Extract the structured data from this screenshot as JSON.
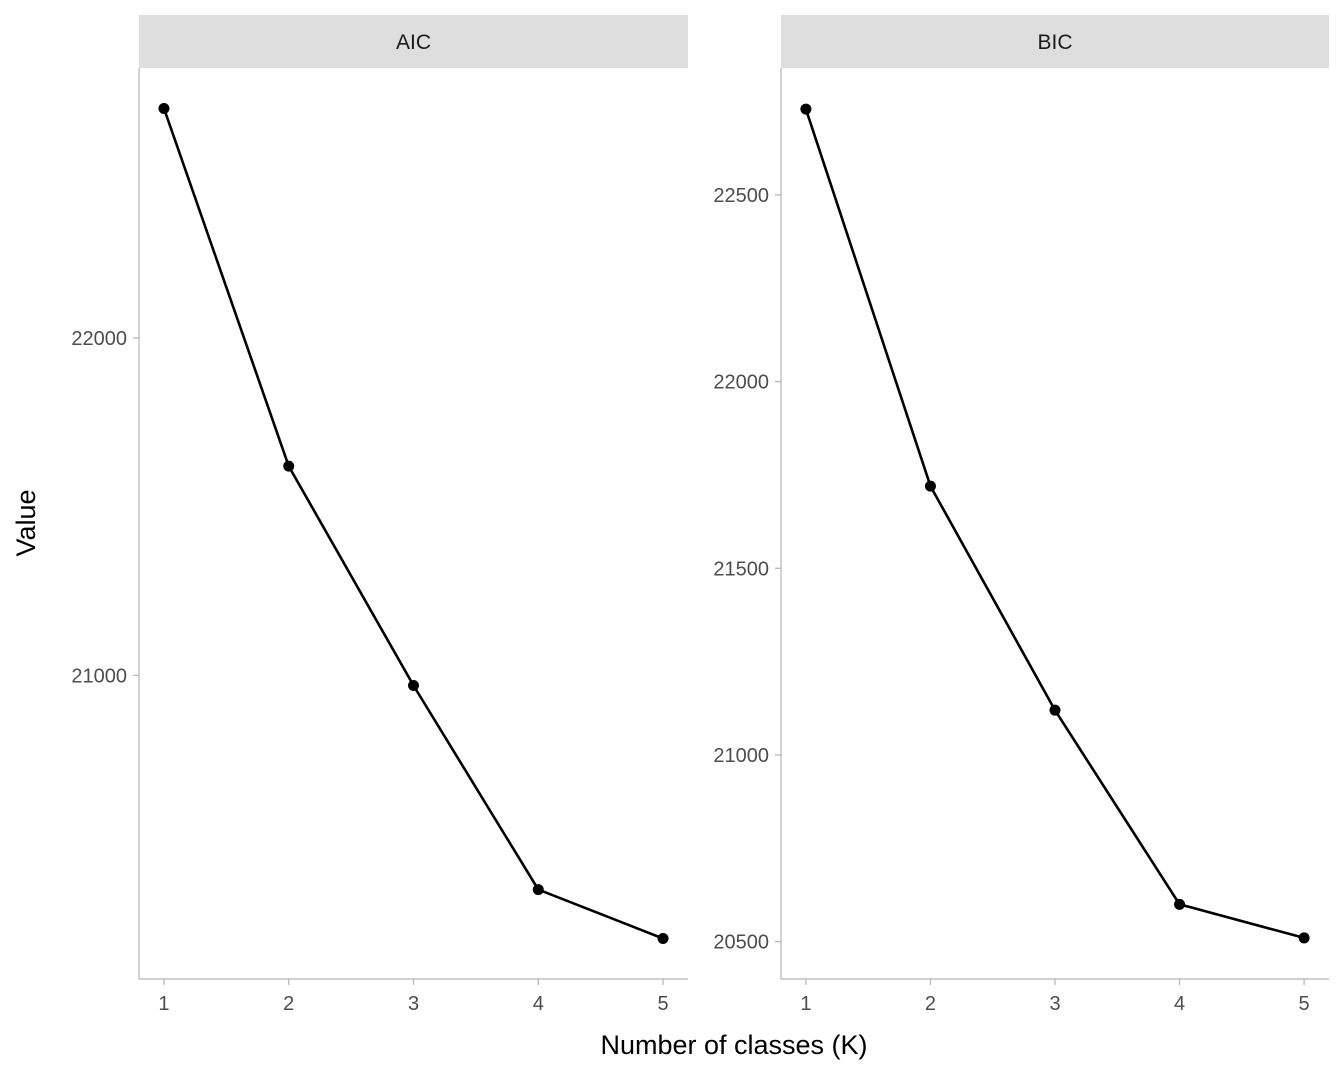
{
  "chart_data": {
    "type": "line",
    "facets": [
      "AIC",
      "BIC"
    ],
    "xlabel": "Number of classes (K)",
    "ylabel": "Value",
    "x": [
      1,
      2,
      3,
      4,
      5
    ],
    "x_ticks": [
      "1",
      "2",
      "3",
      "4",
      "5"
    ],
    "xlim": [
      0.8,
      5.2
    ],
    "panels": [
      {
        "facet": "AIC",
        "values": [
          22680,
          21620,
          20970,
          20365,
          20220
        ],
        "ylim": [
          20100,
          22800
        ],
        "y_ticks": [
          21000,
          22000
        ],
        "y_tick_labels": [
          "21000",
          "22000"
        ]
      },
      {
        "facet": "BIC",
        "values": [
          22730,
          21720,
          21120,
          20600,
          20510
        ],
        "ylim": [
          20400,
          22840
        ],
        "y_ticks": [
          20500,
          21000,
          21500,
          22000,
          22500
        ],
        "y_tick_labels": [
          "20500",
          "21000",
          "21500",
          "22000",
          "22500"
        ]
      }
    ],
    "grid": false,
    "legend": "none",
    "colors": {
      "line": "#000000",
      "strip_bg": "#dedede",
      "axis": "#b3b3b3"
    }
  }
}
